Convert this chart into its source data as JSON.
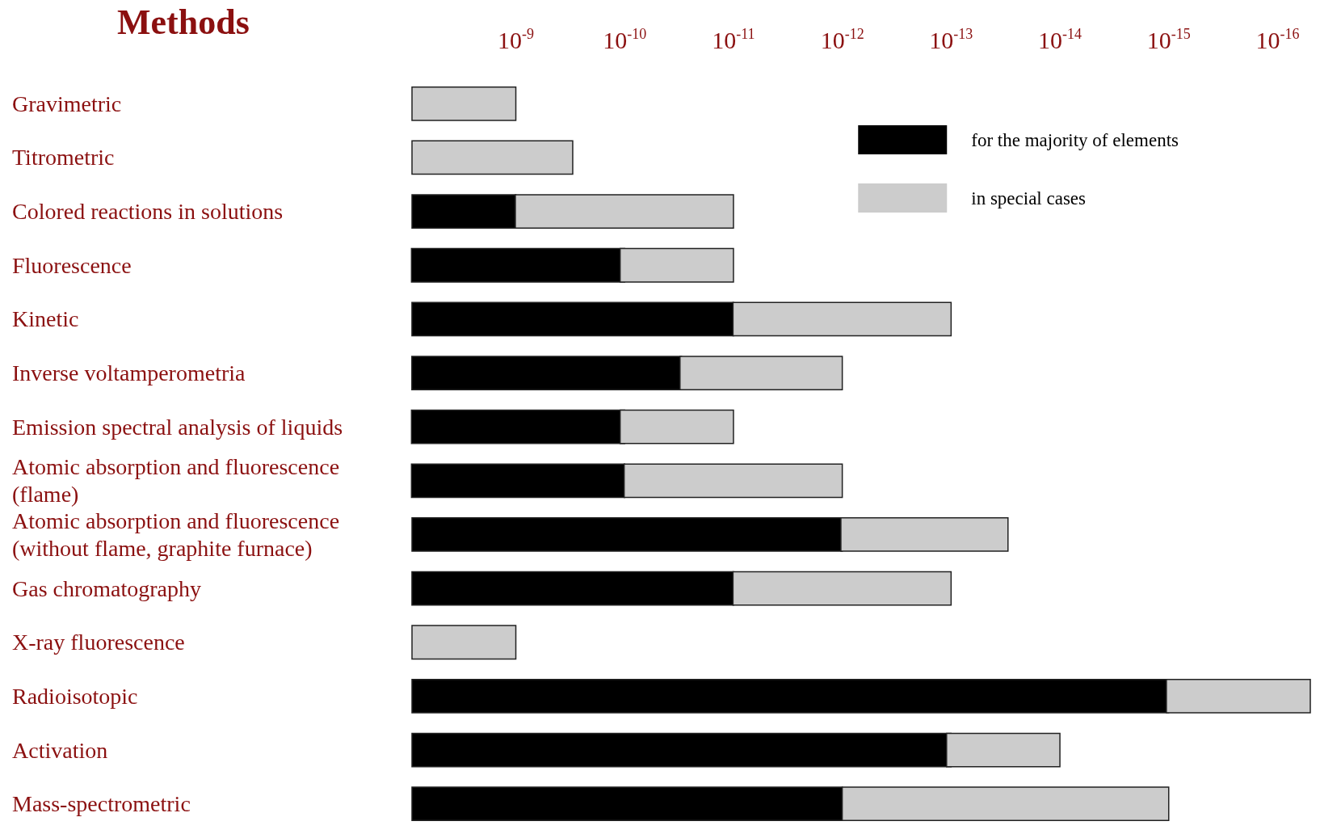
{
  "chart_data": {
    "type": "bar",
    "orientation": "horizontal",
    "title": "Methods",
    "log": "x",
    "categories": [
      "Gravimetric",
      "Titrometric",
      "Colored reactions in solutions",
      "Fluorescence",
      "Kinetic",
      "Inverse voltamperometria",
      "Emission spectral analysis of liquids",
      "Atomic absorption and fluorescence (flame)",
      "Atomic absorption and fluorescence (without flame, graphite furnace)",
      "Gas chromatography",
      "X-ray fluorescence",
      "Radioisotopic",
      "Activation",
      "Mass-spectrometric"
    ],
    "series": [
      {
        "name": "for the majority of elements",
        "color": "#000000",
        "base": [
          null,
          null,
          1e-09,
          1e-10,
          1e-11,
          3e-11,
          1e-10,
          1e-10,
          1e-12,
          1e-11,
          null,
          1e-15,
          1e-13,
          1e-12
        ],
        "values": [
          null,
          null,
          8e-09,
          9e-09,
          9e-09,
          9e-09,
          9e-09,
          9e-09,
          9e-09,
          9e-09,
          null,
          9e-09,
          9e-09,
          9e-09
        ]
      },
      {
        "name": "in special cases",
        "color": "#cccccc",
        "base": [
          1e-09,
          3e-10,
          1e-11,
          1e-11,
          1e-13,
          1e-12,
          1e-11,
          1e-12,
          3e-14,
          1e-13,
          1e-09,
          5e-17,
          1e-14,
          1e-15
        ],
        "values": [
          8e-09,
          8.7e-09,
          1e-09,
          1e-10,
          1e-11,
          3e-11,
          1e-10,
          1e-10,
          1e-12,
          1e-11,
          8e-09,
          1e-15,
          1e-13,
          1e-12
        ]
      }
    ],
    "xlim": [
      9e-09,
      5e-17
    ],
    "xticks": [
      {
        "value": 1e-09,
        "label": "10$^{-9}$"
      },
      {
        "value": 1e-10,
        "label": "10$^{-10}$"
      },
      {
        "value": 1e-11,
        "label": "10$^{-11}$"
      },
      {
        "value": 1e-12,
        "label": "10$^{-12}$"
      },
      {
        "value": 1e-13,
        "label": "10$^{-13}$"
      },
      {
        "value": 1e-14,
        "label": "10$^{-14}$"
      },
      {
        "value": 1e-15,
        "label": "10$^{-15}$"
      },
      {
        "value": 1e-16,
        "label": "10$^{-16}$"
      }
    ],
    "legend": "top right"
  }
}
